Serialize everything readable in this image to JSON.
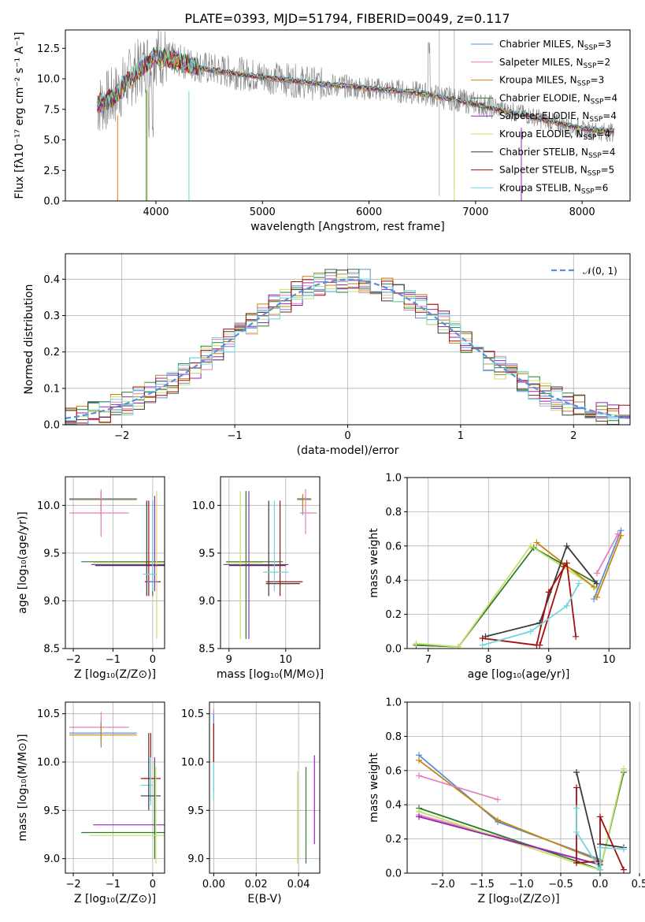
{
  "title": "PLATE=0393, MJD=51794, FIBERID=0049, z=0.117",
  "colors": {
    "chabrier_miles": "#5b8fd9",
    "salpeter_miles": "#e57fbf",
    "kroupa_miles": "#c8860a",
    "chabrier_elodie": "#2d7a2d",
    "salpeter_elodie": "#9b22b8",
    "kroupa_elodie": "#c6df6a",
    "chabrier_stelib": "#3a3a3a",
    "salpeter_stelib": "#a40f0f",
    "kroupa_stelib": "#6fd6de",
    "data": "#808080",
    "normal": "#5b8fd9",
    "orange": "#e7781c"
  },
  "legend": [
    {
      "label": "Chabrier MILES, N",
      "sub": "SSP",
      "suffix": "=3",
      "color": "#5b8fd9"
    },
    {
      "label": "Salpeter MILES, N",
      "sub": "SSP",
      "suffix": "=2",
      "color": "#e57fbf"
    },
    {
      "label": "Kroupa MILES, N",
      "sub": "SSP",
      "suffix": "=3",
      "color": "#c8860a"
    },
    {
      "label": "Chabrier ELODIE, N",
      "sub": "SSP",
      "suffix": "=4",
      "color": "#2d7a2d"
    },
    {
      "label": "Salpeter ELODIE, N",
      "sub": "SSP",
      "suffix": "=4",
      "color": "#9b22b8"
    },
    {
      "label": "Kroupa ELODIE, N",
      "sub": "SSP",
      "suffix": "=4",
      "color": "#c6df6a"
    },
    {
      "label": "Chabrier STELIB, N",
      "sub": "SSP",
      "suffix": "=4",
      "color": "#3a3a3a"
    },
    {
      "label": "Salpeter STELIB, N",
      "sub": "SSP",
      "suffix": "=5",
      "color": "#a40f0f"
    },
    {
      "label": "Kroupa STELIB, N",
      "sub": "SSP",
      "suffix": "=6",
      "color": "#6fd6de"
    }
  ],
  "chart_data": [
    {
      "type": "line",
      "name": "spectrum",
      "xlabel": "wavelength [Angstrom, rest frame]",
      "ylabel": "Flux [fλ10⁻¹⁷ erg cm⁻² s⁻¹ A⁻¹]",
      "xlim": [
        3150,
        8450
      ],
      "ylim": [
        0,
        14
      ],
      "xticks": [
        "4000",
        "5000",
        "6000",
        "7000",
        "8000"
      ],
      "yticks": [
        "0.0",
        "2.5",
        "5.0",
        "7.5",
        "10.0",
        "12.5"
      ],
      "x": [
        3450,
        3600,
        3800,
        4000,
        4200,
        4500,
        5000,
        5500,
        6000,
        6500,
        7000,
        7500,
        8000,
        8300
      ],
      "series": [
        {
          "name": "data",
          "values": [
            7.8,
            8.5,
            10.5,
            12.0,
            11.5,
            10.8,
            10.2,
            9.6,
            9.2,
            8.8,
            8.0,
            7.0,
            5.8,
            5.6
          ]
        },
        {
          "name": "model",
          "values": [
            7.8,
            8.3,
            10.3,
            11.8,
            11.3,
            10.6,
            10.0,
            9.5,
            9.1,
            8.7,
            7.8,
            6.8,
            5.8,
            5.6
          ]
        }
      ]
    },
    {
      "type": "histogram",
      "name": "residuals",
      "xlabel": "(data-model)/error",
      "ylabel": "Normed distribution",
      "xlim": [
        -2.5,
        2.5
      ],
      "ylim": [
        0,
        0.47
      ],
      "xticks": [
        "−2",
        "−1",
        "0",
        "1",
        "2"
      ],
      "yticks": [
        "0.0",
        "0.1",
        "0.2",
        "0.3",
        "0.4"
      ],
      "legend": "𝒩(0, 1)"
    },
    {
      "type": "errorbar",
      "name": "age-vs-Z",
      "xlabel": "Z [log₁₀(Z/Z⊙)]",
      "ylabel": "age  [log₁₀(age/yr)]",
      "xlim": [
        -2.2,
        0.3
      ],
      "ylim": [
        8.5,
        10.3
      ],
      "xticks": [
        "−2",
        "−1",
        "0"
      ],
      "yticks": [
        "8.5",
        "9.0",
        "9.5",
        "10.0"
      ]
    },
    {
      "type": "errorbar",
      "name": "age-vs-mass",
      "xlabel": "mass [log₁₀(M/M⊙)]",
      "xlim": [
        8.85,
        10.6
      ],
      "ylim": [
        8.5,
        10.3
      ],
      "xticks": [
        "9",
        "10"
      ],
      "yticks": [
        "8.5",
        "9.0",
        "9.5",
        "10.0"
      ]
    },
    {
      "type": "line",
      "name": "massweight-vs-age",
      "xlabel": "age  [log₁₀(age/yr)]",
      "ylabel": "mass weight",
      "xlim": [
        6.65,
        10.35
      ],
      "ylim": [
        0,
        1
      ],
      "xticks": [
        "7",
        "8",
        "9",
        "10"
      ],
      "yticks": [
        "0.0",
        "0.2",
        "0.4",
        "0.6",
        "0.8",
        "1.0"
      ]
    },
    {
      "type": "errorbar",
      "name": "mass-vs-Z",
      "xlabel": "Z [log₁₀(Z/Z⊙)]",
      "ylabel": "mass [log₁₀(M/M⊙)]",
      "xlim": [
        -2.2,
        0.3
      ],
      "ylim": [
        8.85,
        10.62
      ],
      "xticks": [
        "−2",
        "−1",
        "0"
      ],
      "yticks": [
        "9.0",
        "9.5",
        "10.0",
        "10.5"
      ]
    },
    {
      "type": "errorbar",
      "name": "mass-vs-ebv",
      "xlabel": "E(B-V)",
      "xlim": [
        -0.002,
        0.05
      ],
      "ylim": [
        8.85,
        10.62
      ],
      "xticks": [
        "0.00",
        "0.02",
        "0.04"
      ],
      "yticks": [
        "9.0",
        "9.5",
        "10.0",
        "10.5"
      ]
    },
    {
      "type": "line",
      "name": "massweight-vs-Z",
      "xlabel": "Z [log₁₀(Z/Z⊙)]",
      "ylabel": "mass weight",
      "xlim": [
        -2.45,
        0.38
      ],
      "ylim": [
        0,
        1
      ],
      "xticks": [
        "−2.0",
        "−1.5",
        "−1.0",
        "−0.5",
        "0.0",
        "0.5"
      ],
      "yticks": [
        "0.0",
        "0.2",
        "0.4",
        "0.6",
        "0.8",
        "1.0"
      ]
    }
  ]
}
